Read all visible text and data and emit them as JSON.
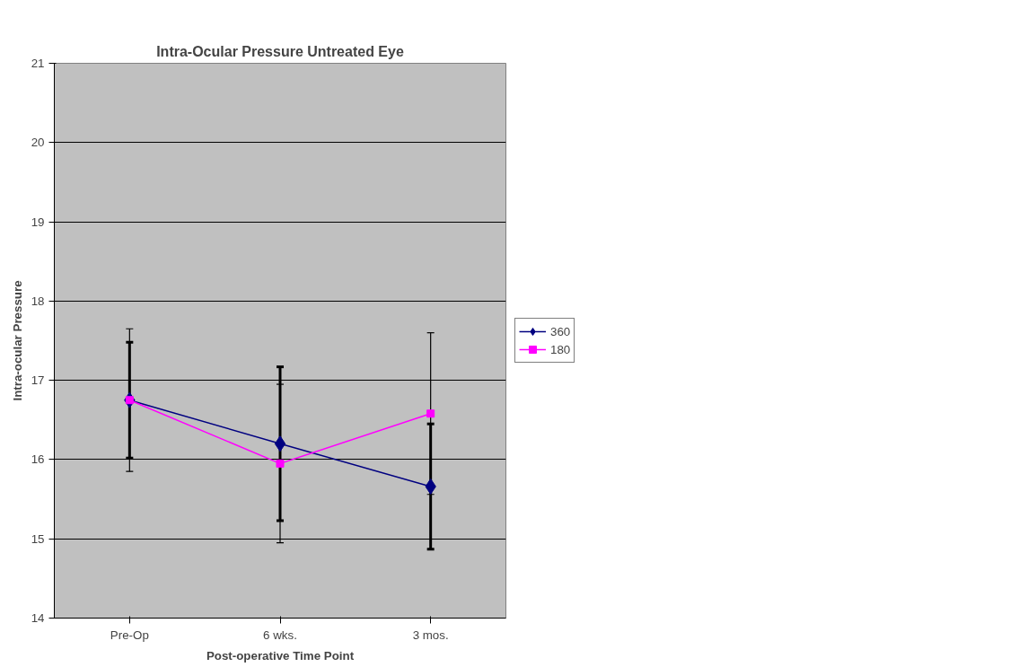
{
  "chart_data": {
    "type": "line",
    "title": "Intra-Ocular Pressure Untreated Eye",
    "xlabel": "Post-operative Time Point",
    "ylabel": "Intra-ocular Pressure",
    "categories": [
      "Pre-Op",
      "6 wks.",
      "3 mos."
    ],
    "series": [
      {
        "name": "360",
        "color": "#000080",
        "marker": "diamond",
        "values": [
          16.75,
          16.2,
          15.66
        ],
        "errors": [
          0.73,
          0.97,
          0.79
        ]
      },
      {
        "name": "180",
        "color": "#ff00ff",
        "marker": "square",
        "values": [
          16.75,
          15.95,
          16.58
        ],
        "errors": [
          0.9,
          1.0,
          1.02
        ]
      }
    ],
    "ylim": [
      14,
      21
    ],
    "yticks": [
      14,
      15,
      16,
      17,
      18,
      19,
      20,
      21
    ],
    "grid": "y",
    "legend": "right"
  }
}
